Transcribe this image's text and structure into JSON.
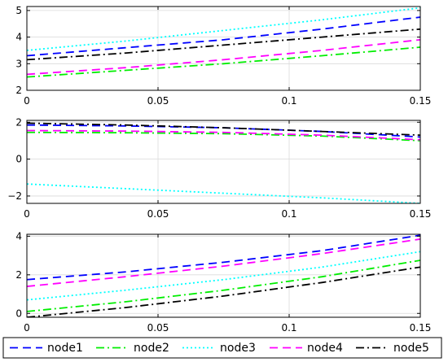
{
  "legend": {
    "location": "bottom",
    "entries": [
      "node1",
      "node2",
      "node3",
      "node4",
      "node5"
    ]
  },
  "styles": {
    "node1": {
      "color": "#0000ff",
      "dash": "dashed"
    },
    "node2": {
      "color": "#00ee00",
      "dash": "dashdot"
    },
    "node3": {
      "color": "#00ffff",
      "dash": "dotted"
    },
    "node4": {
      "color": "#ff00ff",
      "dash": "dashed"
    },
    "node5": {
      "color": "#000000",
      "dash": "dashdot"
    }
  },
  "chart_data": [
    {
      "type": "line",
      "grid": true,
      "xlim": [
        0,
        0.15
      ],
      "ylim": [
        2,
        5.15
      ],
      "xticks": [
        0,
        0.05,
        0.1,
        0.15
      ],
      "xtick_labels": [
        "0",
        "0.05",
        "0.1",
        "0.15"
      ],
      "yticks": [
        2,
        3,
        4,
        5
      ],
      "ytick_labels": [
        "2",
        "3",
        "4",
        "5"
      ],
      "x": [
        0,
        0.0375,
        0.075,
        0.1125,
        0.15
      ],
      "series": [
        {
          "name": "node1",
          "values": [
            3.3,
            3.6,
            3.9,
            4.3,
            4.75
          ]
        },
        {
          "name": "node2",
          "values": [
            2.5,
            2.75,
            3.0,
            3.3,
            3.62
          ]
        },
        {
          "name": "node3",
          "values": [
            3.5,
            3.85,
            4.25,
            4.65,
            5.1
          ]
        },
        {
          "name": "node4",
          "values": [
            2.6,
            2.85,
            3.15,
            3.5,
            3.9
          ]
        },
        {
          "name": "node5",
          "values": [
            3.15,
            3.4,
            3.7,
            4.0,
            4.3
          ]
        }
      ]
    },
    {
      "type": "line",
      "grid": true,
      "xlim": [
        0,
        0.15
      ],
      "ylim": [
        -2.4,
        2.1
      ],
      "xticks": [
        0,
        0.05,
        0.1,
        0.15
      ],
      "xtick_labels": [
        "0",
        "0.05",
        "0.1",
        "0.15"
      ],
      "yticks": [
        -2,
        0,
        2
      ],
      "ytick_labels": [
        "-2",
        "0",
        "2"
      ],
      "x": [
        0,
        0.0375,
        0.075,
        0.1125,
        0.15
      ],
      "series": [
        {
          "name": "node1",
          "values": [
            1.85,
            1.8,
            1.7,
            1.5,
            1.2
          ]
        },
        {
          "name": "node2",
          "values": [
            1.45,
            1.43,
            1.38,
            1.25,
            1.0
          ]
        },
        {
          "name": "node3",
          "values": [
            -1.35,
            -1.6,
            -1.85,
            -2.1,
            -2.4
          ]
        },
        {
          "name": "node4",
          "values": [
            1.55,
            1.52,
            1.45,
            1.3,
            1.05
          ]
        },
        {
          "name": "node5",
          "values": [
            1.95,
            1.85,
            1.7,
            1.5,
            1.3
          ]
        }
      ]
    },
    {
      "type": "line",
      "grid": true,
      "xlim": [
        0,
        0.15
      ],
      "ylim": [
        -0.2,
        4.1
      ],
      "xticks": [
        0,
        0.05,
        0.1,
        0.15
      ],
      "xtick_labels": [
        "0",
        "0.05",
        "0.1",
        "0.15"
      ],
      "yticks": [
        0,
        2,
        4
      ],
      "ytick_labels": [
        "0",
        "2",
        "4"
      ],
      "x": [
        0,
        0.0375,
        0.075,
        0.1125,
        0.15
      ],
      "series": [
        {
          "name": "node1",
          "values": [
            1.75,
            2.15,
            2.65,
            3.25,
            4.05
          ]
        },
        {
          "name": "node2",
          "values": [
            0.1,
            0.6,
            1.2,
            1.9,
            2.75
          ]
        },
        {
          "name": "node3",
          "values": [
            0.7,
            1.2,
            1.75,
            2.4,
            3.2
          ]
        },
        {
          "name": "node4",
          "values": [
            1.4,
            1.9,
            2.45,
            3.1,
            3.85
          ]
        },
        {
          "name": "node5",
          "values": [
            -0.2,
            0.3,
            0.9,
            1.6,
            2.4
          ]
        }
      ]
    }
  ]
}
